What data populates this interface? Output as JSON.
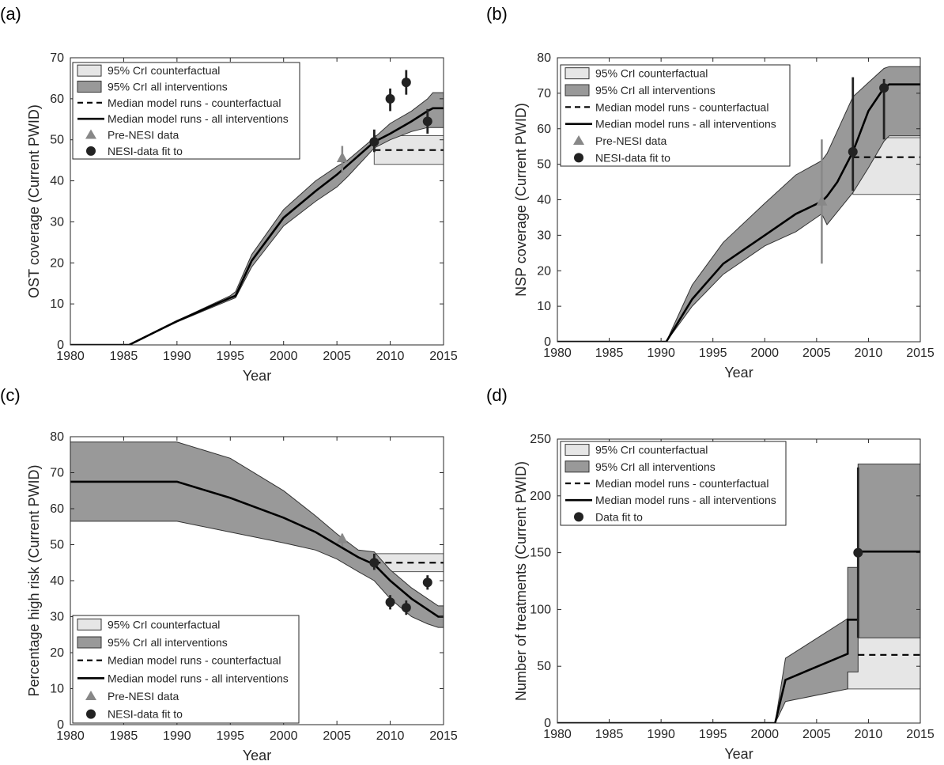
{
  "legend_labels": {
    "cf_band": "95% CrI counterfactual",
    "all_band": "95% CrI all interventions",
    "cf_median": "Median model runs - counterfactual",
    "all_median": "Median model runs - all interventions",
    "pre": "Pre-NESI data",
    "data": "NESI-data fit to",
    "data_d": "Data fit to"
  },
  "colors": {
    "cf_band": "#e6e6e6",
    "all_band": "#999999",
    "median": "#000000",
    "pre_marker": "#888888",
    "data_marker": "#222222"
  },
  "chart_data": [
    {
      "panel": "(a)",
      "type": "area",
      "xlabel": "Year",
      "ylabel": "OST coverage (Current PWID)",
      "xlim": [
        1980,
        2015
      ],
      "ylim": [
        0,
        70
      ],
      "xticks": [
        1980,
        1985,
        1990,
        1995,
        2000,
        2005,
        2010,
        2015
      ],
      "yticks": [
        0,
        10,
        20,
        30,
        40,
        50,
        60,
        70
      ],
      "legend_position": "top-left",
      "legend_keys": [
        "cf_band",
        "all_band",
        "cf_median",
        "all_median",
        "pre",
        "data"
      ],
      "all_band": {
        "x": [
          1980,
          1985.5,
          1990,
          1995,
          1995.5,
          1997,
          2000,
          2003,
          2005,
          2006,
          2008.5,
          2010,
          2012,
          2013.5,
          2014,
          2015
        ],
        "lower": [
          0,
          0,
          5.6,
          11,
          11.5,
          19,
          29,
          35,
          38.5,
          41,
          48,
          50,
          52,
          53,
          53,
          53
        ],
        "upper": [
          0,
          0,
          5.9,
          12,
          13,
          22,
          33,
          40,
          43.5,
          45,
          50.5,
          54,
          57,
          60,
          61.5,
          61.5
        ]
      },
      "all_median": {
        "x": [
          1980,
          1985.5,
          1990,
          1995,
          1995.5,
          1997,
          2000,
          2003,
          2005,
          2008.5,
          2010,
          2012,
          2013.5,
          2014,
          2015
        ],
        "y": [
          0,
          0,
          5.8,
          11.5,
          12,
          20.5,
          31,
          37.5,
          41.5,
          49.5,
          51.5,
          54.5,
          57,
          57.7,
          57.7
        ]
      },
      "cf_band": {
        "x": [
          2008.5,
          2015
        ],
        "lower": [
          44,
          44
        ],
        "upper": [
          51,
          51
        ]
      },
      "cf_median": {
        "x": [
          2008.5,
          2015
        ],
        "y": [
          47.5,
          47.5
        ]
      },
      "pre_data": [
        {
          "x": 2005.5,
          "y": 45.5,
          "low": 42,
          "high": 48.5
        }
      ],
      "fit_data": [
        {
          "x": 2008.5,
          "y": 49.5,
          "low": 47,
          "high": 52.5
        },
        {
          "x": 2010,
          "y": 60,
          "low": 57,
          "high": 62.5
        },
        {
          "x": 2011.5,
          "y": 64,
          "low": 61,
          "high": 67
        },
        {
          "x": 2013.5,
          "y": 54.5,
          "low": 51.5,
          "high": 57.5
        }
      ]
    },
    {
      "panel": "(b)",
      "type": "area",
      "xlabel": "Year",
      "ylabel": "NSP coverage (Current PWID)",
      "xlim": [
        1980,
        2015
      ],
      "ylim": [
        0,
        80
      ],
      "xticks": [
        1980,
        1985,
        1990,
        1995,
        2000,
        2005,
        2010,
        2015
      ],
      "yticks": [
        0,
        10,
        20,
        30,
        40,
        50,
        60,
        70,
        80
      ],
      "legend_position": "top-left",
      "legend_keys": [
        "cf_band",
        "all_band",
        "cf_median",
        "all_median",
        "pre",
        "data"
      ],
      "all_band": {
        "x": [
          1980,
          1990.5,
          1993,
          1996,
          2000,
          2003,
          2005.5,
          2006,
          2008.5,
          2010,
          2011.5,
          2012,
          2015
        ],
        "lower": [
          0,
          0,
          10,
          19,
          27,
          31,
          36,
          33,
          42,
          49,
          56.5,
          58,
          58
        ],
        "upper": [
          0,
          0,
          16,
          28,
          39,
          47,
          51,
          53,
          69,
          73,
          77,
          77.5,
          77.5
        ]
      },
      "all_median": {
        "x": [
          1980,
          1990.5,
          1993,
          1996,
          2000,
          2003,
          2005.5,
          2006,
          2007,
          2008.5,
          2010,
          2011.5,
          2012,
          2015
        ],
        "y": [
          0,
          0,
          12,
          22,
          30,
          36,
          39.5,
          41,
          45,
          53.5,
          65,
          71.5,
          72.5,
          72.5
        ]
      },
      "cf_band": {
        "x": [
          2008.5,
          2015
        ],
        "lower": [
          41.5,
          41.5
        ],
        "upper": [
          57.5,
          57.5
        ]
      },
      "cf_median": {
        "x": [
          2008.5,
          2015
        ],
        "y": [
          52,
          52
        ]
      },
      "pre_data": [
        {
          "x": 2005.5,
          "y": 39.5,
          "low": 22,
          "high": 57
        }
      ],
      "fit_data": [
        {
          "x": 2008.5,
          "y": 53.5,
          "low": 42.5,
          "high": 74.5
        },
        {
          "x": 2011.5,
          "y": 71.5,
          "low": 57,
          "high": 74
        }
      ]
    },
    {
      "panel": "(c)",
      "type": "area",
      "xlabel": "Year",
      "ylabel": "Percentage high risk (Current PWID)",
      "xlim": [
        1980,
        2015
      ],
      "ylim": [
        0,
        80
      ],
      "xticks": [
        1980,
        1985,
        1990,
        1995,
        2000,
        2005,
        2010,
        2015
      ],
      "yticks": [
        0,
        10,
        20,
        30,
        40,
        50,
        60,
        70,
        80
      ],
      "legend_position": "bottom-left",
      "legend_keys": [
        "cf_band",
        "all_band",
        "cf_median",
        "all_median",
        "pre",
        "data"
      ],
      "all_band": {
        "x": [
          1980,
          1990,
          1995,
          2000,
          2003,
          2005,
          2007,
          2008.5,
          2010,
          2012,
          2013.5,
          2014.5,
          2015
        ],
        "lower": [
          56.5,
          56.5,
          53.5,
          50.5,
          48.5,
          46,
          42.5,
          40,
          35,
          30,
          28,
          27,
          27
        ],
        "upper": [
          78.5,
          78.5,
          74,
          65,
          58,
          53,
          48.5,
          48,
          43,
          38,
          35,
          33,
          33
        ]
      },
      "all_median": {
        "x": [
          1980,
          1990,
          1995,
          2000,
          2003,
          2005,
          2007,
          2008.5,
          2010,
          2012,
          2013.5,
          2014.5,
          2015
        ],
        "y": [
          67.5,
          67.5,
          63,
          57.5,
          53.5,
          50,
          46.5,
          44.5,
          40,
          35,
          32,
          30,
          30
        ]
      },
      "cf_band": {
        "x": [
          2008.5,
          2015
        ],
        "lower": [
          42.5,
          42.5
        ],
        "upper": [
          47.5,
          47.5
        ]
      },
      "cf_median": {
        "x": [
          2008.5,
          2015
        ],
        "y": [
          45,
          45
        ]
      },
      "pre_data": [
        {
          "x": 2005.5,
          "y": 51.5,
          "low": 49.5,
          "high": 53
        }
      ],
      "fit_data": [
        {
          "x": 2008.5,
          "y": 45,
          "low": 43,
          "high": 47.5
        },
        {
          "x": 2010,
          "y": 34,
          "low": 32,
          "high": 36
        },
        {
          "x": 2011.5,
          "y": 32.5,
          "low": 30.5,
          "high": 34.5
        },
        {
          "x": 2013.5,
          "y": 39.5,
          "low": 37.5,
          "high": 41.5
        }
      ]
    },
    {
      "panel": "(d)",
      "type": "area",
      "xlabel": "Year",
      "ylabel": "Number of treatments (Current PWID)",
      "xlim": [
        1980,
        2015
      ],
      "ylim": [
        0,
        250
      ],
      "xticks": [
        1980,
        1985,
        1990,
        1995,
        2000,
        2005,
        2010,
        2015
      ],
      "yticks": [
        0,
        50,
        100,
        150,
        200,
        250
      ],
      "legend_position": "top-left",
      "legend_keys": [
        "cf_band",
        "all_band",
        "cf_median",
        "all_median",
        "data_d"
      ],
      "all_band": {
        "x": [
          1980,
          2001,
          2002,
          2008,
          2008,
          2009,
          2009,
          2015
        ],
        "lower": [
          0,
          0,
          19,
          30,
          45,
          45,
          75,
          75
        ],
        "upper": [
          0,
          0,
          57,
          92,
          137,
          137,
          228,
          228
        ]
      },
      "all_median": {
        "x": [
          1980,
          2001,
          2002,
          2008,
          2008,
          2009,
          2009,
          2015
        ],
        "y": [
          0,
          0,
          38,
          61,
          91,
          91,
          151,
          151
        ]
      },
      "cf_band": {
        "x": [
          2008,
          2015
        ],
        "lower": [
          30,
          30
        ],
        "upper": [
          91,
          91
        ]
      },
      "cf_median": {
        "x": [
          2009,
          2015
        ],
        "y": [
          60,
          60
        ]
      },
      "pre_data": [],
      "fit_data": [
        {
          "x": 2009,
          "y": 150,
          "low": 75,
          "high": 225
        }
      ]
    }
  ]
}
